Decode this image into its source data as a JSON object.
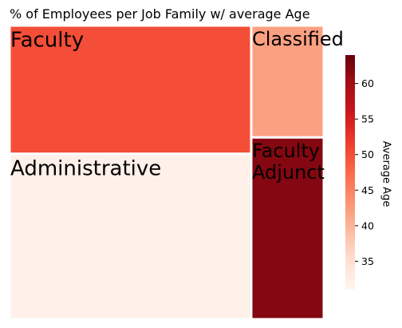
{
  "chart_data": {
    "type": "treemap",
    "title": "% of Employees per Job Family w/ average Age",
    "colorbar": {
      "label": "Average Age",
      "range": [
        31,
        64
      ],
      "ticks": [
        35,
        40,
        45,
        50,
        55,
        60
      ],
      "colormap": "Reds"
    },
    "items": [
      {
        "label": "Faculty",
        "percent": 33.6,
        "average_age": 50
      },
      {
        "label": "Administrative",
        "percent": 43.3,
        "average_age": 32
      },
      {
        "label": "Classified",
        "percent": 8.8,
        "average_age": 42
      },
      {
        "label": "Faculty Adjunct",
        "percent": 14.3,
        "average_age": 62
      }
    ]
  }
}
